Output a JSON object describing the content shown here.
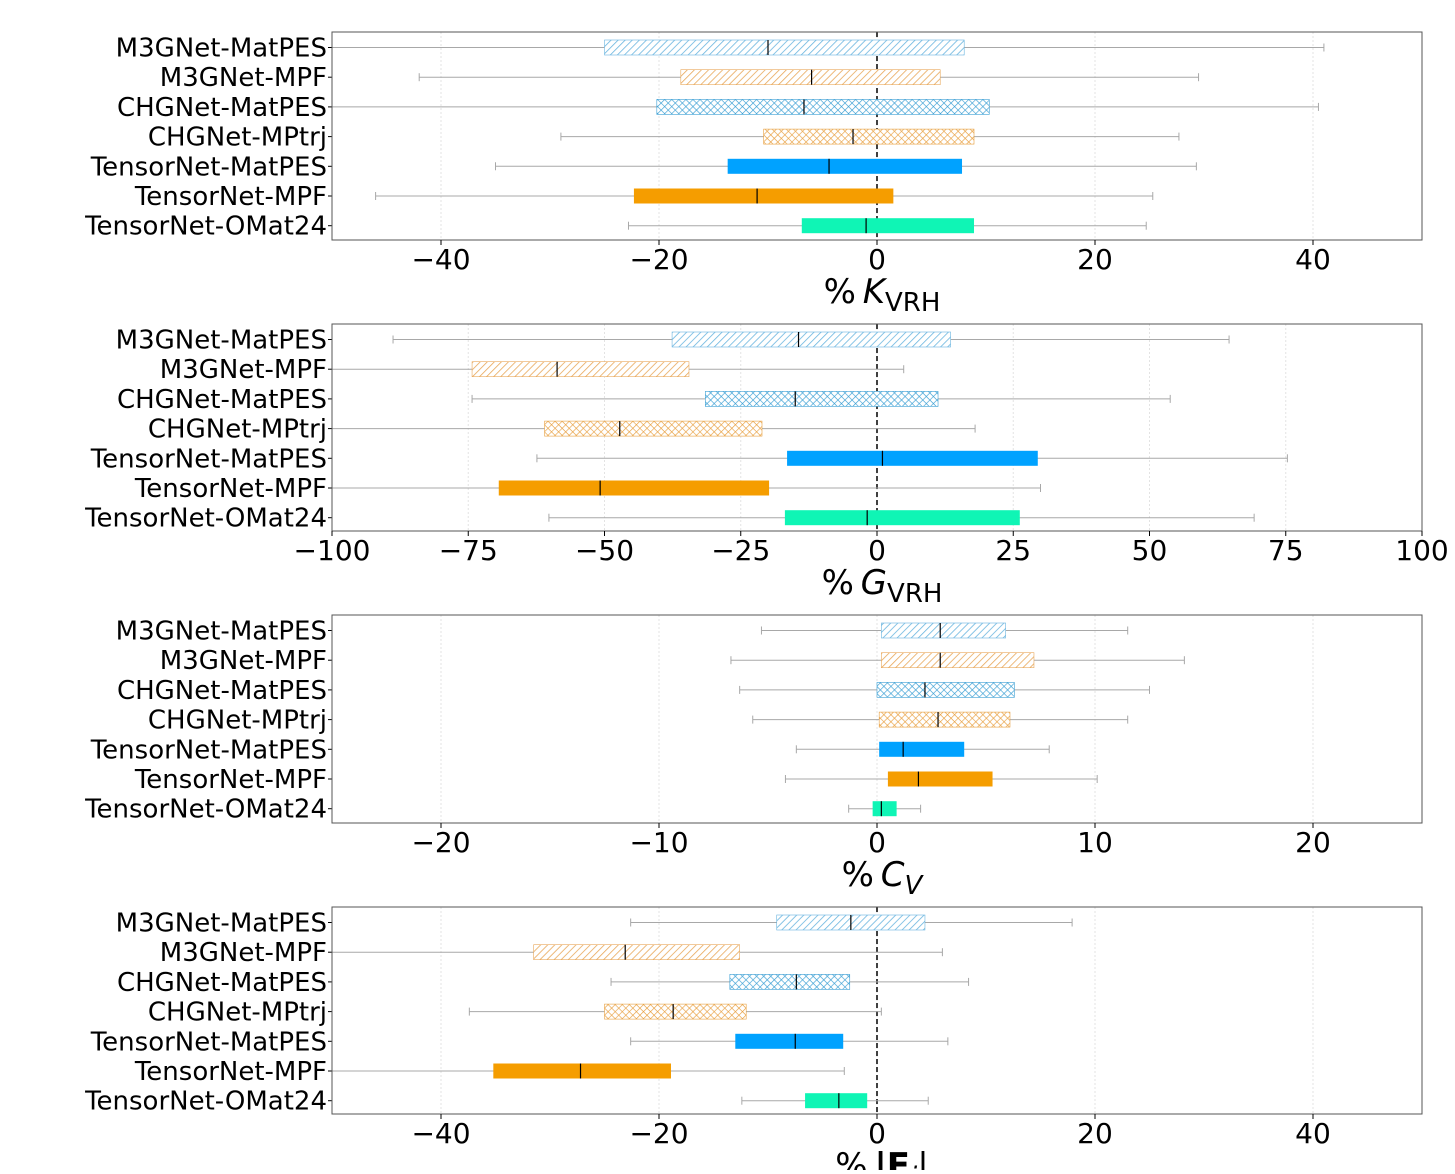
{
  "chart_data": [
    {
      "type": "box",
      "orientation": "horizontal",
      "xlabel": "% K_VRH",
      "xlabel_parts": {
        "prefix": "%",
        "symbol": "K",
        "subscript": "VRH"
      },
      "xlim": [
        -50,
        50
      ],
      "xticks": [
        -40,
        -20,
        0,
        20,
        40
      ],
      "xtick_labels": [
        "−40",
        "−20",
        "0",
        "20",
        "40"
      ],
      "grid": "vertical",
      "reference_line": 0,
      "categories": [
        "M3GNet-MatPES",
        "M3GNet-MPF",
        "CHGNet-MatPES",
        "CHGNet-MPtrj",
        "TensorNet-MatPES",
        "TensorNet-MPF",
        "TensorNet-OMat24"
      ],
      "boxes": [
        {
          "whislo": -50,
          "q1": -25,
          "med": -10,
          "q3": 8,
          "whishi": 41
        },
        {
          "whislo": -42,
          "q1": -18,
          "med": -6,
          "q3": 5.8,
          "whishi": 29.5
        },
        {
          "whislo": -50,
          "q1": -20.2,
          "med": -6.7,
          "q3": 10.3,
          "whishi": 40.5
        },
        {
          "whislo": -29,
          "q1": -10.4,
          "med": -2.2,
          "q3": 8.9,
          "whishi": 27.7
        },
        {
          "whislo": -35,
          "q1": -13.7,
          "med": -4.4,
          "q3": 7.8,
          "whishi": 29.3
        },
        {
          "whislo": -46,
          "q1": -22.3,
          "med": -11,
          "q3": 1.5,
          "whishi": 25.3
        },
        {
          "whislo": -22.8,
          "q1": -6.9,
          "med": -1,
          "q3": 8.9,
          "whishi": 24.7
        }
      ]
    },
    {
      "type": "box",
      "orientation": "horizontal",
      "xlabel": "% G_VRH",
      "xlabel_parts": {
        "prefix": "%",
        "symbol": "G",
        "subscript": "VRH"
      },
      "xlim": [
        -100,
        100
      ],
      "xticks": [
        -100,
        -75,
        -50,
        -25,
        0,
        25,
        50,
        75,
        100
      ],
      "xtick_labels": [
        "−100",
        "−75",
        "−50",
        "−25",
        "0",
        "25",
        "50",
        "75",
        "100"
      ],
      "grid": "vertical",
      "reference_line": 0,
      "categories": [
        "M3GNet-MatPES",
        "M3GNet-MPF",
        "CHGNet-MatPES",
        "CHGNet-MPtrj",
        "TensorNet-MatPES",
        "TensorNet-MPF",
        "TensorNet-OMat24"
      ],
      "boxes": [
        {
          "whislo": -88.8,
          "q1": -37.6,
          "med": -14.4,
          "q3": 13.5,
          "whishi": 64.6
        },
        {
          "whislo": -100,
          "q1": -74.3,
          "med": -58.7,
          "q3": -34.5,
          "whishi": 4.9
        },
        {
          "whislo": -74.3,
          "q1": -31.5,
          "med": -15,
          "q3": 11.2,
          "whishi": 53.8
        },
        {
          "whislo": -100,
          "q1": -61,
          "med": -47.2,
          "q3": -21.1,
          "whishi": 18
        },
        {
          "whislo": -62.4,
          "q1": -16.5,
          "med": 1,
          "q3": 29.5,
          "whishi": 75.3
        },
        {
          "whislo": -100,
          "q1": -69.4,
          "med": -50.8,
          "q3": -19.8,
          "whishi": 30
        },
        {
          "whislo": -60.2,
          "q1": -16.9,
          "med": -1.8,
          "q3": 26.2,
          "whishi": 69.2
        }
      ]
    },
    {
      "type": "box",
      "orientation": "horizontal",
      "xlabel": "% C_V",
      "xlabel_parts": {
        "prefix": "%",
        "symbol": "C",
        "subscript": "V"
      },
      "xlim": [
        -25,
        25
      ],
      "xticks": [
        -20,
        -10,
        0,
        10,
        20
      ],
      "xtick_labels": [
        "−20",
        "−10",
        "0",
        "10",
        "20"
      ],
      "grid": "vertical",
      "reference_line": null,
      "categories": [
        "M3GNet-MatPES",
        "M3GNet-MPF",
        "CHGNet-MatPES",
        "CHGNet-MPtrj",
        "TensorNet-MatPES",
        "TensorNet-MPF",
        "TensorNet-OMat24"
      ],
      "boxes": [
        {
          "whislo": -5.3,
          "q1": 0.2,
          "med": 2.9,
          "q3": 5.9,
          "whishi": 11.5
        },
        {
          "whislo": -6.7,
          "q1": 0.2,
          "med": 2.9,
          "q3": 7.2,
          "whishi": 14.1
        },
        {
          "whislo": -6.3,
          "q1": 0,
          "med": 2.2,
          "q3": 6.3,
          "whishi": 12.5
        },
        {
          "whislo": -5.7,
          "q1": 0.1,
          "med": 2.8,
          "q3": 6.1,
          "whishi": 11.5
        },
        {
          "whislo": -3.7,
          "q1": 0.1,
          "med": 1.2,
          "q3": 4,
          "whishi": 7.9
        },
        {
          "whislo": -4.2,
          "q1": 0.5,
          "med": 1.9,
          "q3": 5.3,
          "whishi": 10.1
        },
        {
          "whislo": -1.3,
          "q1": -0.2,
          "med": 0.2,
          "q3": 0.9,
          "whishi": 2
        }
      ]
    },
    {
      "type": "box",
      "orientation": "horizontal",
      "xlabel": "% |F_i|",
      "xlabel_parts": {
        "prefix": "%",
        "symbol": "|F",
        "subscript": "i",
        "suffix": "|"
      },
      "xlim": [
        -50,
        50
      ],
      "xticks": [
        -40,
        -20,
        0,
        20,
        40
      ],
      "xtick_labels": [
        "−40",
        "−20",
        "0",
        "20",
        "40"
      ],
      "grid": "vertical",
      "reference_line": 0,
      "categories": [
        "M3GNet-MatPES",
        "M3GNet-MPF",
        "CHGNet-MatPES",
        "CHGNet-MPtrj",
        "TensorNet-MatPES",
        "TensorNet-MPF",
        "TensorNet-OMat24"
      ],
      "boxes": [
        {
          "whislo": -22.6,
          "q1": -9.2,
          "med": -2.4,
          "q3": 4.4,
          "whishi": 17.9
        },
        {
          "whislo": -50,
          "q1": -31.5,
          "med": -23.1,
          "q3": -12.6,
          "whishi": 6
        },
        {
          "whislo": -24.4,
          "q1": -13.5,
          "med": -7.4,
          "q3": -2.5,
          "whishi": 8.4
        },
        {
          "whislo": -37.4,
          "q1": -25,
          "med": -18.7,
          "q3": -12,
          "whishi": 0.4
        },
        {
          "whislo": -22.6,
          "q1": -13,
          "med": -7.5,
          "q3": -3.1,
          "whishi": 6.5
        },
        {
          "whislo": -50,
          "q1": -35.2,
          "med": -27.2,
          "q3": -18.9,
          "whishi": -3
        },
        {
          "whislo": -12.4,
          "q1": -6.6,
          "med": -3.5,
          "q3": -0.9,
          "whishi": 4.7
        }
      ]
    }
  ],
  "series_styles": [
    {
      "name": "M3GNet-MatPES",
      "color": "#6ab5df",
      "fill": "hatch-diag",
      "opacity": 1
    },
    {
      "name": "M3GNet-MPF",
      "color": "#e8a85a",
      "fill": "hatch-diag",
      "opacity": 1
    },
    {
      "name": "CHGNet-MatPES",
      "color": "#3a9fd4",
      "fill": "hatch-cross",
      "opacity": 1
    },
    {
      "name": "CHGNet-MPtrj",
      "color": "#e8a040",
      "fill": "hatch-cross",
      "opacity": 1
    },
    {
      "name": "TensorNet-MatPES",
      "color": "#00a2ff",
      "fill": "solid",
      "opacity": 1
    },
    {
      "name": "TensorNet-MPF",
      "color": "#f59d00",
      "fill": "solid",
      "opacity": 1
    },
    {
      "name": "TensorNet-OMat24",
      "color": "#0ff5b5",
      "fill": "solid",
      "opacity": 1
    }
  ],
  "colors": {
    "whisker": "#a8a8a8",
    "grid": "#e3e3e3",
    "frame": "#555555",
    "median": "#000000",
    "reference": "#000000"
  }
}
